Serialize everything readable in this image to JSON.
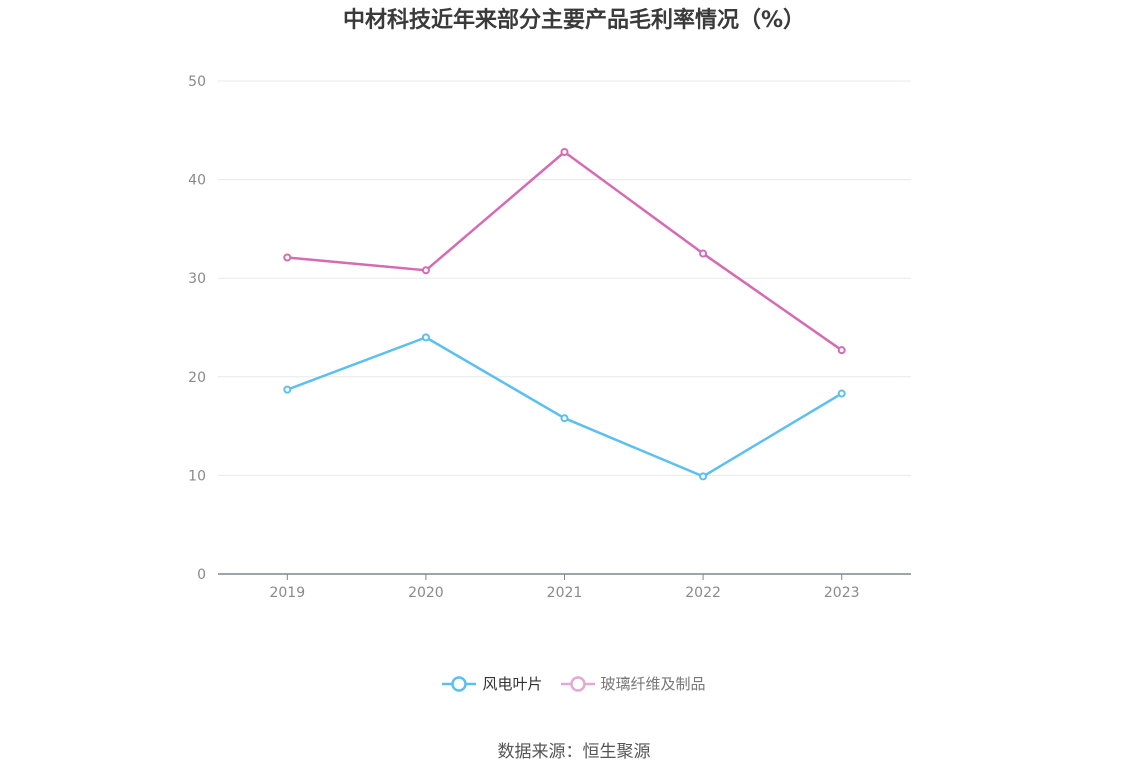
{
  "chart_data": {
    "type": "line",
    "title": "中材科技近年来部分主要产品毛利率情况（%）",
    "categories": [
      "2019",
      "2020",
      "2021",
      "2022",
      "2023"
    ],
    "series": [
      {
        "name": "风电叶片",
        "values": [
          18.7,
          24.0,
          15.8,
          9.9,
          18.3
        ],
        "color": "#5bc0f0"
      },
      {
        "name": "玻璃纤维及制品",
        "values": [
          32.1,
          30.8,
          42.8,
          32.5,
          22.7
        ],
        "color": "#d46bb3"
      }
    ],
    "ylim": [
      0,
      50
    ],
    "yticks": [
      0,
      10,
      20,
      30,
      40,
      50
    ],
    "xlabel": "",
    "ylabel": "",
    "grid": true,
    "legend": "bottom-center"
  },
  "source": "数据来源：恒生聚源"
}
